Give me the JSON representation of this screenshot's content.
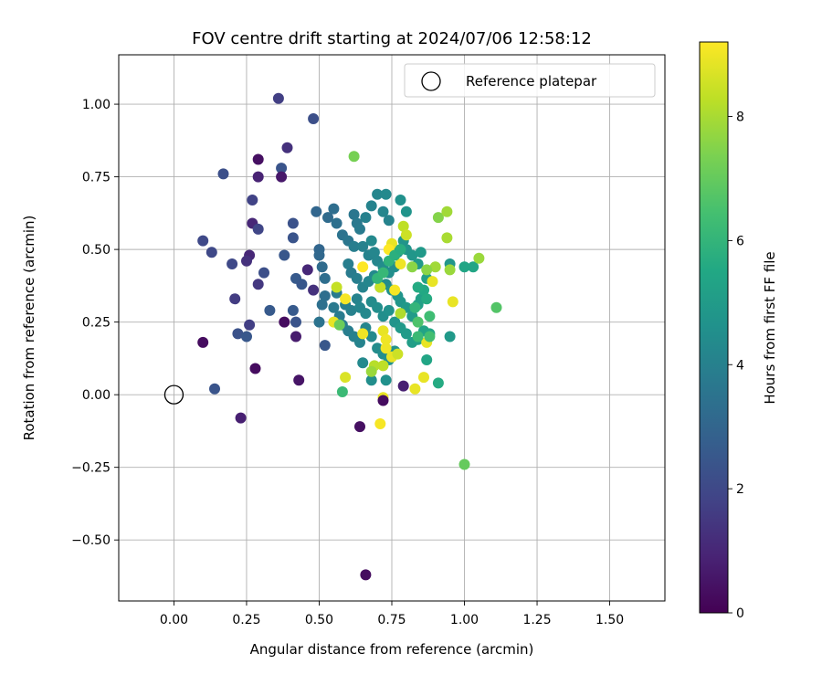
{
  "chart_data": {
    "type": "scatter",
    "title": "FOV centre drift starting at 2024/07/06 12:58:12",
    "xlabel": "Angular distance from reference (arcmin)",
    "ylabel": "Rotation from reference (arcmin)",
    "xlim": [
      -0.19,
      1.69
    ],
    "ylim": [
      -0.71,
      1.17
    ],
    "xticks": [
      "0.00",
      "0.25",
      "0.50",
      "0.75",
      "1.00",
      "1.25",
      "1.50"
    ],
    "yticks": [
      "−0.50",
      "−0.25",
      "0.00",
      "0.25",
      "0.50",
      "0.75",
      "1.00"
    ],
    "grid": true,
    "colormap": "viridis",
    "colorbar": {
      "label": "Hours from first FF file",
      "range": [
        0,
        9.2
      ],
      "ticks": [
        "0",
        "2",
        "4",
        "6",
        "8"
      ]
    },
    "legend": {
      "label": "Reference platepar",
      "placement": "top-right"
    },
    "reference_point": {
      "x": 0.0,
      "y": 0.0
    },
    "points": [
      [
        0.36,
        1.02,
        1.7
      ],
      [
        0.48,
        0.95,
        2.2
      ],
      [
        0.39,
        0.85,
        1.3
      ],
      [
        0.29,
        0.81,
        0.4
      ],
      [
        0.17,
        0.76,
        2.2
      ],
      [
        0.37,
        0.78,
        2.4
      ],
      [
        0.29,
        0.75,
        0.9
      ],
      [
        0.37,
        0.75,
        0.6
      ],
      [
        0.27,
        0.67,
        1.8
      ],
      [
        0.27,
        0.59,
        1.0
      ],
      [
        0.29,
        0.57,
        1.9
      ],
      [
        0.41,
        0.59,
        2.3
      ],
      [
        0.1,
        0.53,
        2.0
      ],
      [
        0.13,
        0.49,
        2.0
      ],
      [
        0.26,
        0.48,
        1.0
      ],
      [
        0.25,
        0.46,
        1.3
      ],
      [
        0.38,
        0.48,
        2.5
      ],
      [
        0.41,
        0.54,
        2.4
      ],
      [
        0.2,
        0.45,
        2.0
      ],
      [
        0.31,
        0.42,
        2.2
      ],
      [
        0.29,
        0.38,
        1.5
      ],
      [
        0.21,
        0.33,
        1.6
      ],
      [
        0.42,
        0.4,
        2.6
      ],
      [
        0.44,
        0.38,
        2.5
      ],
      [
        0.33,
        0.29,
        2.6
      ],
      [
        0.41,
        0.29,
        2.6
      ],
      [
        0.26,
        0.24,
        1.7
      ],
      [
        0.22,
        0.21,
        2.3
      ],
      [
        0.25,
        0.2,
        2.5
      ],
      [
        0.38,
        0.25,
        0.3
      ],
      [
        0.42,
        0.25,
        2.4
      ],
      [
        0.1,
        0.18,
        0.3
      ],
      [
        0.42,
        0.2,
        0.7
      ],
      [
        0.52,
        0.17,
        2.5
      ],
      [
        0.28,
        0.09,
        0.3
      ],
      [
        0.43,
        0.05,
        0.5
      ],
      [
        0.14,
        0.02,
        2.4
      ],
      [
        0.23,
        -0.08,
        0.8
      ],
      [
        0.46,
        0.43,
        1.0
      ],
      [
        0.48,
        0.36,
        1.3
      ],
      [
        0.49,
        0.63,
        3.0
      ],
      [
        0.5,
        0.5,
        3.0
      ],
      [
        0.5,
        0.48,
        3.1
      ],
      [
        0.51,
        0.44,
        3.2
      ],
      [
        0.52,
        0.4,
        3.3
      ],
      [
        0.52,
        0.34,
        3.3
      ],
      [
        0.51,
        0.31,
        3.4
      ],
      [
        0.5,
        0.25,
        3.5
      ],
      [
        0.53,
        0.61,
        3.2
      ],
      [
        0.55,
        0.64,
        3.3
      ],
      [
        0.56,
        0.59,
        3.4
      ],
      [
        0.58,
        0.55,
        3.5
      ],
      [
        0.6,
        0.53,
        3.6
      ],
      [
        0.62,
        0.62,
        3.6
      ],
      [
        0.63,
        0.59,
        3.7
      ],
      [
        0.64,
        0.57,
        3.8
      ],
      [
        0.66,
        0.61,
        4.0
      ],
      [
        0.68,
        0.65,
        4.1
      ],
      [
        0.7,
        0.69,
        4.2
      ],
      [
        0.73,
        0.69,
        4.3
      ],
      [
        0.72,
        0.63,
        4.2
      ],
      [
        0.74,
        0.6,
        4.1
      ],
      [
        0.78,
        0.67,
        4.6
      ],
      [
        0.8,
        0.63,
        4.7
      ],
      [
        0.62,
        0.51,
        3.9
      ],
      [
        0.65,
        0.51,
        4.0
      ],
      [
        0.67,
        0.48,
        4.1
      ],
      [
        0.68,
        0.53,
        4.3
      ],
      [
        0.69,
        0.49,
        4.2
      ],
      [
        0.7,
        0.46,
        4.2
      ],
      [
        0.72,
        0.44,
        4.4
      ],
      [
        0.74,
        0.42,
        4.5
      ],
      [
        0.76,
        0.44,
        4.5
      ],
      [
        0.77,
        0.49,
        4.6
      ],
      [
        0.79,
        0.53,
        4.7
      ],
      [
        0.8,
        0.5,
        4.7
      ],
      [
        0.82,
        0.48,
        4.8
      ],
      [
        0.84,
        0.45,
        4.9
      ],
      [
        0.85,
        0.49,
        4.9
      ],
      [
        0.87,
        0.4,
        5.2
      ],
      [
        0.6,
        0.45,
        3.9
      ],
      [
        0.61,
        0.42,
        3.8
      ],
      [
        0.63,
        0.4,
        3.9
      ],
      [
        0.65,
        0.37,
        4.1
      ],
      [
        0.67,
        0.39,
        4.2
      ],
      [
        0.69,
        0.41,
        4.3
      ],
      [
        0.71,
        0.37,
        4.3
      ],
      [
        0.73,
        0.38,
        4.4
      ],
      [
        0.75,
        0.36,
        4.6
      ],
      [
        0.77,
        0.34,
        4.7
      ],
      [
        0.78,
        0.32,
        4.8
      ],
      [
        0.8,
        0.3,
        4.9
      ],
      [
        0.82,
        0.27,
        5.0
      ],
      [
        0.84,
        0.31,
        5.1
      ],
      [
        0.85,
        0.33,
        5.2
      ],
      [
        0.56,
        0.35,
        3.8
      ],
      [
        0.55,
        0.3,
        3.7
      ],
      [
        0.57,
        0.27,
        3.8
      ],
      [
        0.59,
        0.31,
        3.9
      ],
      [
        0.61,
        0.29,
        4.0
      ],
      [
        0.63,
        0.33,
        4.1
      ],
      [
        0.64,
        0.3,
        4.2
      ],
      [
        0.66,
        0.28,
        4.3
      ],
      [
        0.68,
        0.32,
        4.4
      ],
      [
        0.7,
        0.3,
        4.5
      ],
      [
        0.72,
        0.27,
        4.5
      ],
      [
        0.74,
        0.29,
        4.6
      ],
      [
        0.76,
        0.25,
        4.7
      ],
      [
        0.78,
        0.23,
        4.9
      ],
      [
        0.8,
        0.21,
        5.0
      ],
      [
        0.82,
        0.18,
        5.1
      ],
      [
        0.84,
        0.19,
        5.2
      ],
      [
        0.86,
        0.22,
        5.3
      ],
      [
        0.88,
        0.21,
        5.4
      ],
      [
        0.58,
        0.24,
        3.9
      ],
      [
        0.6,
        0.22,
        3.9
      ],
      [
        0.62,
        0.2,
        4.0
      ],
      [
        0.64,
        0.18,
        4.1
      ],
      [
        0.66,
        0.23,
        4.2
      ],
      [
        0.68,
        0.2,
        4.3
      ],
      [
        0.7,
        0.16,
        4.4
      ],
      [
        0.72,
        0.14,
        4.5
      ],
      [
        0.74,
        0.12,
        4.6
      ],
      [
        0.76,
        0.15,
        4.6
      ],
      [
        0.65,
        0.11,
        4.3
      ],
      [
        0.68,
        0.05,
        4.5
      ],
      [
        0.73,
        0.05,
        4.6
      ],
      [
        0.79,
        0.03,
        0.8
      ],
      [
        0.87,
        0.12,
        5.4
      ],
      [
        0.91,
        0.04,
        5.6
      ],
      [
        0.95,
        0.2,
        4.9
      ],
      [
        0.95,
        0.45,
        4.8
      ],
      [
        1.0,
        0.44,
        5.4
      ],
      [
        1.03,
        0.44,
        5.4
      ],
      [
        0.86,
        0.36,
        5.5
      ],
      [
        0.87,
        0.33,
        5.6
      ],
      [
        0.84,
        0.37,
        5.6
      ],
      [
        0.91,
        0.61,
        7.5
      ],
      [
        0.94,
        0.63,
        7.9
      ],
      [
        0.94,
        0.54,
        8.0
      ],
      [
        0.95,
        0.43,
        7.8
      ],
      [
        0.9,
        0.44,
        7.9
      ],
      [
        0.87,
        0.43,
        7.6
      ],
      [
        0.82,
        0.44,
        7.6
      ],
      [
        1.05,
        0.47,
        7.8
      ],
      [
        1.11,
        0.3,
        6.7
      ],
      [
        1.0,
        -0.24,
        7.0
      ],
      [
        0.62,
        0.82,
        7.3
      ],
      [
        0.79,
        0.58,
        8.3
      ],
      [
        0.8,
        0.55,
        8.5
      ],
      [
        0.75,
        0.52,
        8.9
      ],
      [
        0.74,
        0.5,
        9.2
      ],
      [
        0.78,
        0.45,
        9.0
      ],
      [
        0.65,
        0.44,
        9.2
      ],
      [
        0.96,
        0.32,
        8.9
      ],
      [
        0.89,
        0.39,
        8.9
      ],
      [
        0.76,
        0.36,
        9.1
      ],
      [
        0.71,
        0.37,
        8.4
      ],
      [
        0.56,
        0.37,
        8.4
      ],
      [
        0.59,
        0.33,
        9.1
      ],
      [
        0.55,
        0.25,
        8.9
      ],
      [
        0.57,
        0.24,
        7.1
      ],
      [
        0.65,
        0.21,
        9.0
      ],
      [
        0.72,
        0.22,
        8.9
      ],
      [
        0.73,
        0.19,
        9.0
      ],
      [
        0.73,
        0.16,
        9.0
      ],
      [
        0.75,
        0.13,
        8.9
      ],
      [
        0.77,
        0.14,
        8.5
      ],
      [
        0.72,
        0.1,
        8.3
      ],
      [
        0.69,
        0.1,
        8.2
      ],
      [
        0.68,
        0.08,
        7.8
      ],
      [
        0.59,
        0.06,
        8.7
      ],
      [
        0.58,
        0.01,
        6.2
      ],
      [
        0.72,
        -0.01,
        8.9
      ],
      [
        0.72,
        -0.02,
        0.3
      ],
      [
        0.71,
        -0.1,
        9.1
      ],
      [
        0.64,
        -0.11,
        0.4
      ],
      [
        0.66,
        -0.62,
        0.3
      ],
      [
        0.83,
        0.02,
        8.9
      ],
      [
        0.86,
        0.06,
        8.9
      ],
      [
        0.87,
        0.18,
        8.9
      ],
      [
        0.88,
        0.2,
        6.4
      ],
      [
        0.84,
        0.25,
        6.6
      ],
      [
        0.78,
        0.28,
        8.1
      ],
      [
        0.84,
        0.2,
        6.2
      ],
      [
        0.83,
        0.3,
        6.0
      ],
      [
        0.88,
        0.27,
        6.3
      ],
      [
        0.7,
        0.4,
        6.0
      ],
      [
        0.72,
        0.42,
        6.1
      ],
      [
        0.74,
        0.46,
        5.9
      ],
      [
        0.76,
        0.48,
        5.8
      ],
      [
        0.78,
        0.5,
        5.7
      ]
    ]
  }
}
